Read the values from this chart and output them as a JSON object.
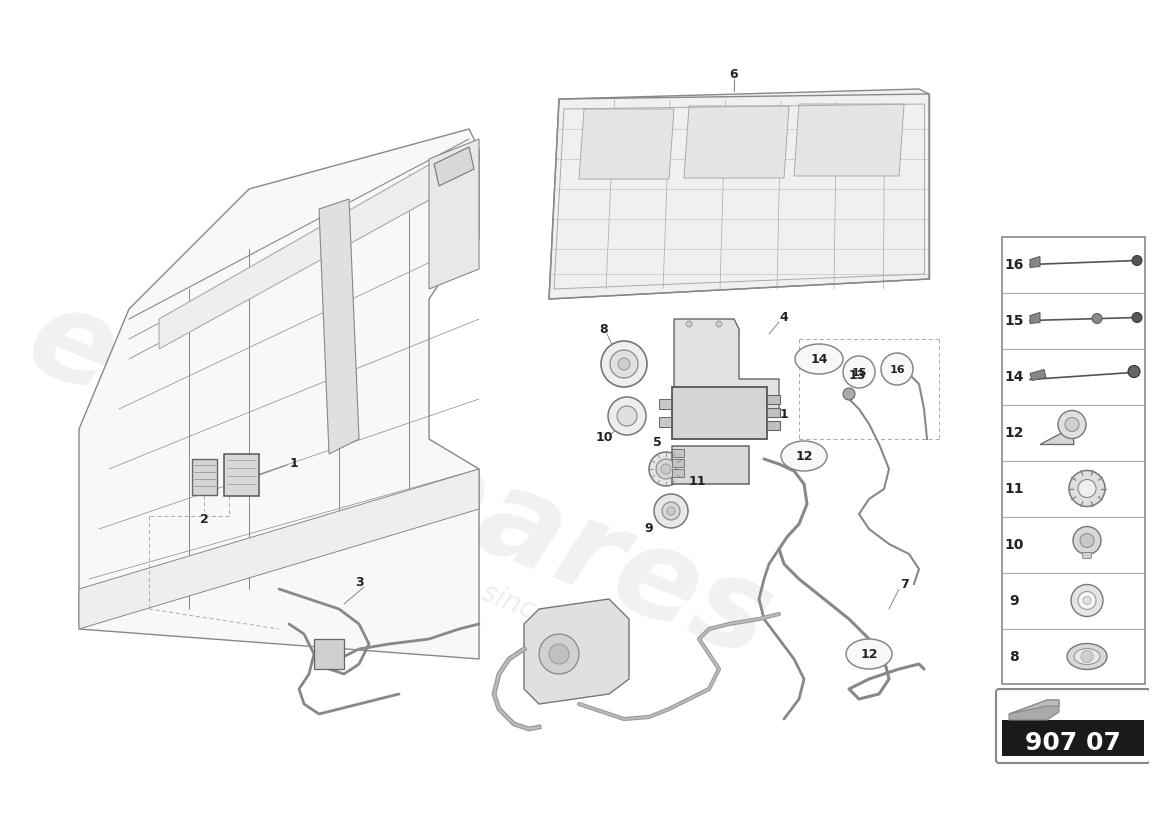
{
  "background_color": "#ffffff",
  "watermark_text1": "eurospares",
  "watermark_text2": "a passion for parts since 1985",
  "part_number_box": "907 07",
  "right_panel_items": [
    {
      "num": "16"
    },
    {
      "num": "15"
    },
    {
      "num": "14"
    },
    {
      "num": "12"
    },
    {
      "num": "11"
    },
    {
      "num": "10"
    },
    {
      "num": "9"
    },
    {
      "num": "8"
    }
  ],
  "line_color": "#555555",
  "label_color": "#222222",
  "body_line_color": "#888888",
  "light_fill": "#f5f5f5",
  "mid_fill": "#e8e8e8",
  "dark_fill": "#cccccc"
}
